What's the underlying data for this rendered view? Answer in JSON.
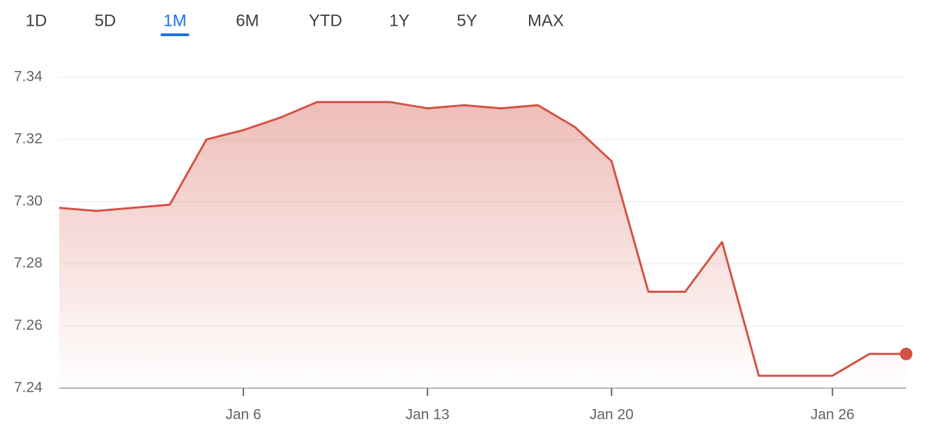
{
  "tabs": [
    "1D",
    "5D",
    "1M",
    "6M",
    "YTD",
    "1Y",
    "5Y",
    "MAX"
  ],
  "selected_tab": 2,
  "chart_data": {
    "type": "line",
    "categories": [
      null,
      null,
      null,
      null,
      null,
      "Jan 6",
      null,
      null,
      null,
      null,
      "Jan 13",
      null,
      null,
      null,
      null,
      "Jan 20",
      null,
      null,
      null,
      null,
      null,
      "Jan 26",
      null,
      null
    ],
    "values": [
      7.298,
      7.297,
      7.298,
      7.299,
      7.32,
      7.323,
      7.327,
      7.332,
      7.332,
      7.332,
      7.33,
      7.331,
      7.33,
      7.331,
      7.324,
      7.313,
      7.271,
      7.271,
      7.287,
      7.244,
      7.244,
      7.244,
      7.251,
      7.251
    ],
    "color": "#d35244",
    "ylim": [
      7.24,
      7.34
    ],
    "yticks": [
      7.24,
      7.26,
      7.28,
      {
        "value": 7.3,
        "label": "7.30"
      },
      7.32,
      7.34
    ],
    "grid": true
  }
}
